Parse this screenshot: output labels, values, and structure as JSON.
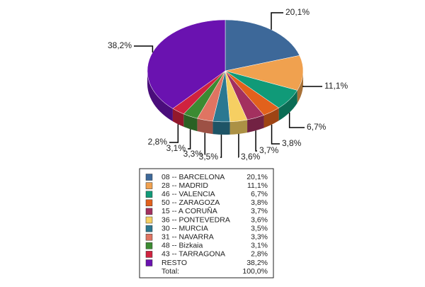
{
  "chart_data": {
    "type": "pie",
    "categories": [
      "08 -- BARCELONA",
      "28 -- MADRID",
      "46 -- VALENCIA",
      "50 -- ZARAGOZA",
      "15 -- A CORUÑA",
      "36 -- PONTEVEDRA",
      "30 -- MURCIA",
      "31 -- NAVARRA",
      "48 -- Bizkaia",
      "43 -- TARRAGONA",
      "RESTO"
    ],
    "values": [
      20.1,
      11.1,
      6.7,
      3.8,
      3.7,
      3.6,
      3.5,
      3.3,
      3.1,
      2.8,
      38.2
    ],
    "value_labels": [
      "20,1%",
      "11,1%",
      "6,7%",
      "3,8%",
      "3,7%",
      "3,6%",
      "3,5%",
      "3,3%",
      "3,1%",
      "2,8%",
      "38,2%"
    ],
    "colors": [
      "#3d6899",
      "#f0a14f",
      "#109a78",
      "#e2611c",
      "#a3305f",
      "#f6cf62",
      "#2b7891",
      "#e07462",
      "#3c8b32",
      "#d0223f",
      "#6a12b0"
    ],
    "total_label": "Total:",
    "total_value_label": "100,0%"
  }
}
